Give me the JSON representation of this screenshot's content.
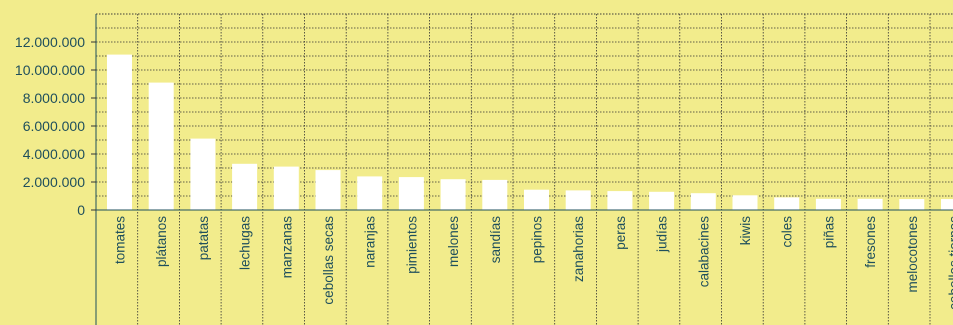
{
  "chart_data": {
    "type": "bar",
    "categories": [
      "tomates",
      "plátanos",
      "patatas",
      "lechugas",
      "manzanas",
      "cebollas secas",
      "naranjas",
      "pimientos",
      "melones",
      "sandías",
      "pepinos",
      "zanahorias",
      "peras",
      "judías",
      "calabacines",
      "kiwis",
      "coles",
      "piñas",
      "fresones",
      "melocotones",
      "cebollas tiernas"
    ],
    "values": [
      11100000,
      9100000,
      5100000,
      3300000,
      3100000,
      2850000,
      2400000,
      2350000,
      2200000,
      2150000,
      1450000,
      1400000,
      1350000,
      1300000,
      1200000,
      1050000,
      900000,
      800000,
      800000,
      780000,
      780000
    ],
    "yticks": [
      "12.000.000",
      "10.000.000",
      "8.000.000",
      "6.000.000",
      "4.000.000",
      "2.000.000",
      "0"
    ],
    "ylim": [
      0,
      14000000
    ],
    "grid": true,
    "colors": {
      "background": "#f2ec8c",
      "bar": "#ffffff",
      "text": "#1f4f5c"
    }
  }
}
